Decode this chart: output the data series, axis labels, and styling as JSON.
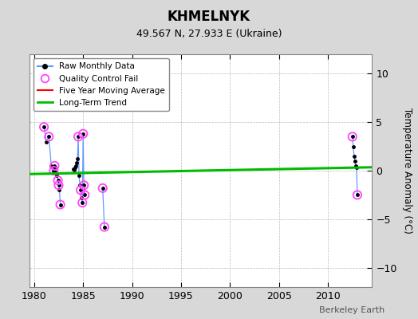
{
  "title": "KHMELNYK",
  "subtitle": "49.567 N, 27.933 E (Ukraine)",
  "ylabel": "Temperature Anomaly (°C)",
  "watermark": "Berkeley Earth",
  "xlim": [
    1979.5,
    2014.5
  ],
  "ylim": [
    -12,
    12
  ],
  "yticks": [
    -10,
    -5,
    0,
    5,
    10
  ],
  "xticks": [
    1980,
    1985,
    1990,
    1995,
    2000,
    2005,
    2010
  ],
  "background_color": "#d8d8d8",
  "plot_bg_color": "#ffffff",
  "segments_x": [
    [
      1981.0,
      1981.25,
      1981.5,
      1981.75,
      1982.0,
      1982.08,
      1982.17,
      1982.25,
      1982.33,
      1982.42,
      1982.5,
      1982.58,
      1982.67
    ],
    [
      1984.0,
      1984.08,
      1984.17,
      1984.25,
      1984.33,
      1984.42,
      1984.5,
      1984.58,
      1984.67,
      1984.75,
      1984.83,
      1984.92,
      1985.0,
      1985.08,
      1985.17
    ],
    [
      1987.0,
      1987.17
    ],
    [
      2012.5,
      2012.58,
      2012.67,
      2012.75,
      2012.83,
      2012.92,
      2013.0
    ]
  ],
  "segments_y": [
    [
      4.5,
      3.0,
      3.5,
      0.5,
      0.0,
      0.5,
      0.3,
      -0.2,
      -0.5,
      -1.0,
      -1.5,
      -2.0,
      -3.5
    ],
    [
      0.2,
      0.1,
      0.3,
      0.5,
      0.8,
      1.2,
      3.5,
      -0.5,
      -1.5,
      -2.0,
      -2.8,
      -3.3,
      3.8,
      -1.5,
      -2.5
    ],
    [
      -1.8,
      -5.8
    ],
    [
      3.5,
      2.5,
      1.5,
      1.0,
      0.5,
      0.3,
      -2.5
    ]
  ],
  "qc_fail_x": [
    1981.0,
    1981.5,
    1982.0,
    1982.08,
    1982.42,
    1982.5,
    1982.67,
    1984.5,
    1984.75,
    1984.92,
    1985.0,
    1985.08,
    1985.17,
    1987.0,
    1987.17,
    2012.5,
    2013.0
  ],
  "qc_fail_y": [
    4.5,
    3.5,
    0.0,
    0.5,
    -1.0,
    -1.5,
    -3.5,
    3.5,
    -2.0,
    -3.3,
    3.8,
    -1.5,
    -2.5,
    -1.8,
    -5.8,
    3.5,
    -2.5
  ],
  "long_term_trend_x": [
    1979.5,
    2014.5
  ],
  "long_term_trend_y": [
    -0.35,
    0.35
  ],
  "colors": {
    "raw_line": "#6699ff",
    "raw_marker": "#000000",
    "qc_fail": "#ff44ff",
    "five_year": "#ff0000",
    "long_term": "#00bb00",
    "legend_border": "#888888"
  },
  "legend_labels": [
    "Raw Monthly Data",
    "Quality Control Fail",
    "Five Year Moving Average",
    "Long-Term Trend"
  ]
}
